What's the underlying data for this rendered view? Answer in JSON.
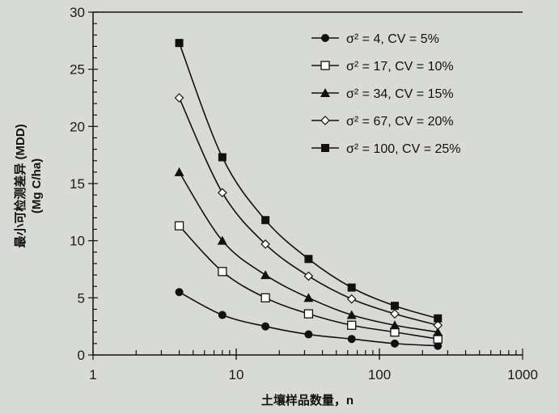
{
  "chart_data": {
    "type": "line",
    "title": "",
    "xlabel": "土壤样品数量，n",
    "ylabel": "最小可检测差异 (MDD)",
    "ylabel_units": "(Mg C/ha)",
    "xscale": "log",
    "xlim": [
      1,
      1000
    ],
    "ylim": [
      0,
      30
    ],
    "xticks": [
      "1",
      "10",
      "100",
      "1000"
    ],
    "yticks": [
      "0",
      "5",
      "10",
      "15",
      "20",
      "25",
      "30"
    ],
    "x": [
      4,
      8,
      16,
      32,
      64,
      128,
      256
    ],
    "legend_position": "top-right",
    "grid": false,
    "series": [
      {
        "name": "σ² = 4, CV = 5%",
        "marker": "filled-circle",
        "values": [
          5.5,
          3.5,
          2.5,
          1.8,
          1.4,
          1.0,
          0.8
        ]
      },
      {
        "name": "σ² = 17, CV = 10%",
        "marker": "open-square",
        "values": [
          11.3,
          7.3,
          5.0,
          3.6,
          2.6,
          2.0,
          1.4
        ]
      },
      {
        "name": "σ² = 34, CV = 15%",
        "marker": "filled-triangle",
        "values": [
          16.0,
          10.0,
          7.0,
          5.0,
          3.5,
          2.6,
          2.0
        ]
      },
      {
        "name": "σ² = 67, CV = 20%",
        "marker": "open-diamond",
        "values": [
          22.5,
          14.2,
          9.7,
          6.9,
          4.9,
          3.6,
          2.6
        ]
      },
      {
        "name": "σ² = 100, CV = 25%",
        "marker": "filled-square",
        "values": [
          27.3,
          17.3,
          11.8,
          8.4,
          5.9,
          4.3,
          3.2
        ]
      }
    ]
  }
}
